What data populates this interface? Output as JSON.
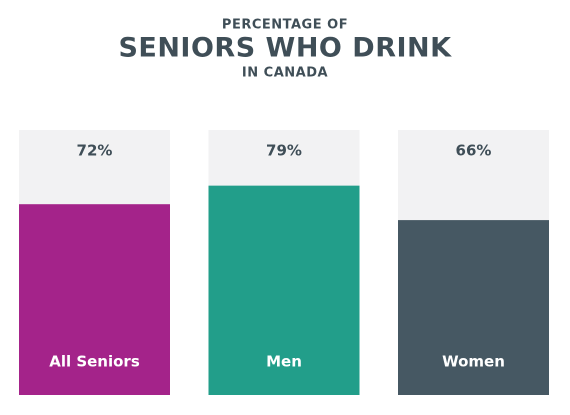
{
  "chart_data": {
    "type": "bar",
    "pretitle": "PERCENTAGE OF",
    "title": "SENIORS WHO DRINK",
    "subtitle": "IN CANADA",
    "categories": [
      "All Seniors",
      "Men",
      "Women"
    ],
    "values": [
      72,
      79,
      66
    ],
    "value_labels": [
      "72%",
      "79%",
      "66%"
    ],
    "colors": [
      "#a4238a",
      "#229e8a",
      "#465863"
    ],
    "ylim": [
      0,
      100
    ]
  }
}
